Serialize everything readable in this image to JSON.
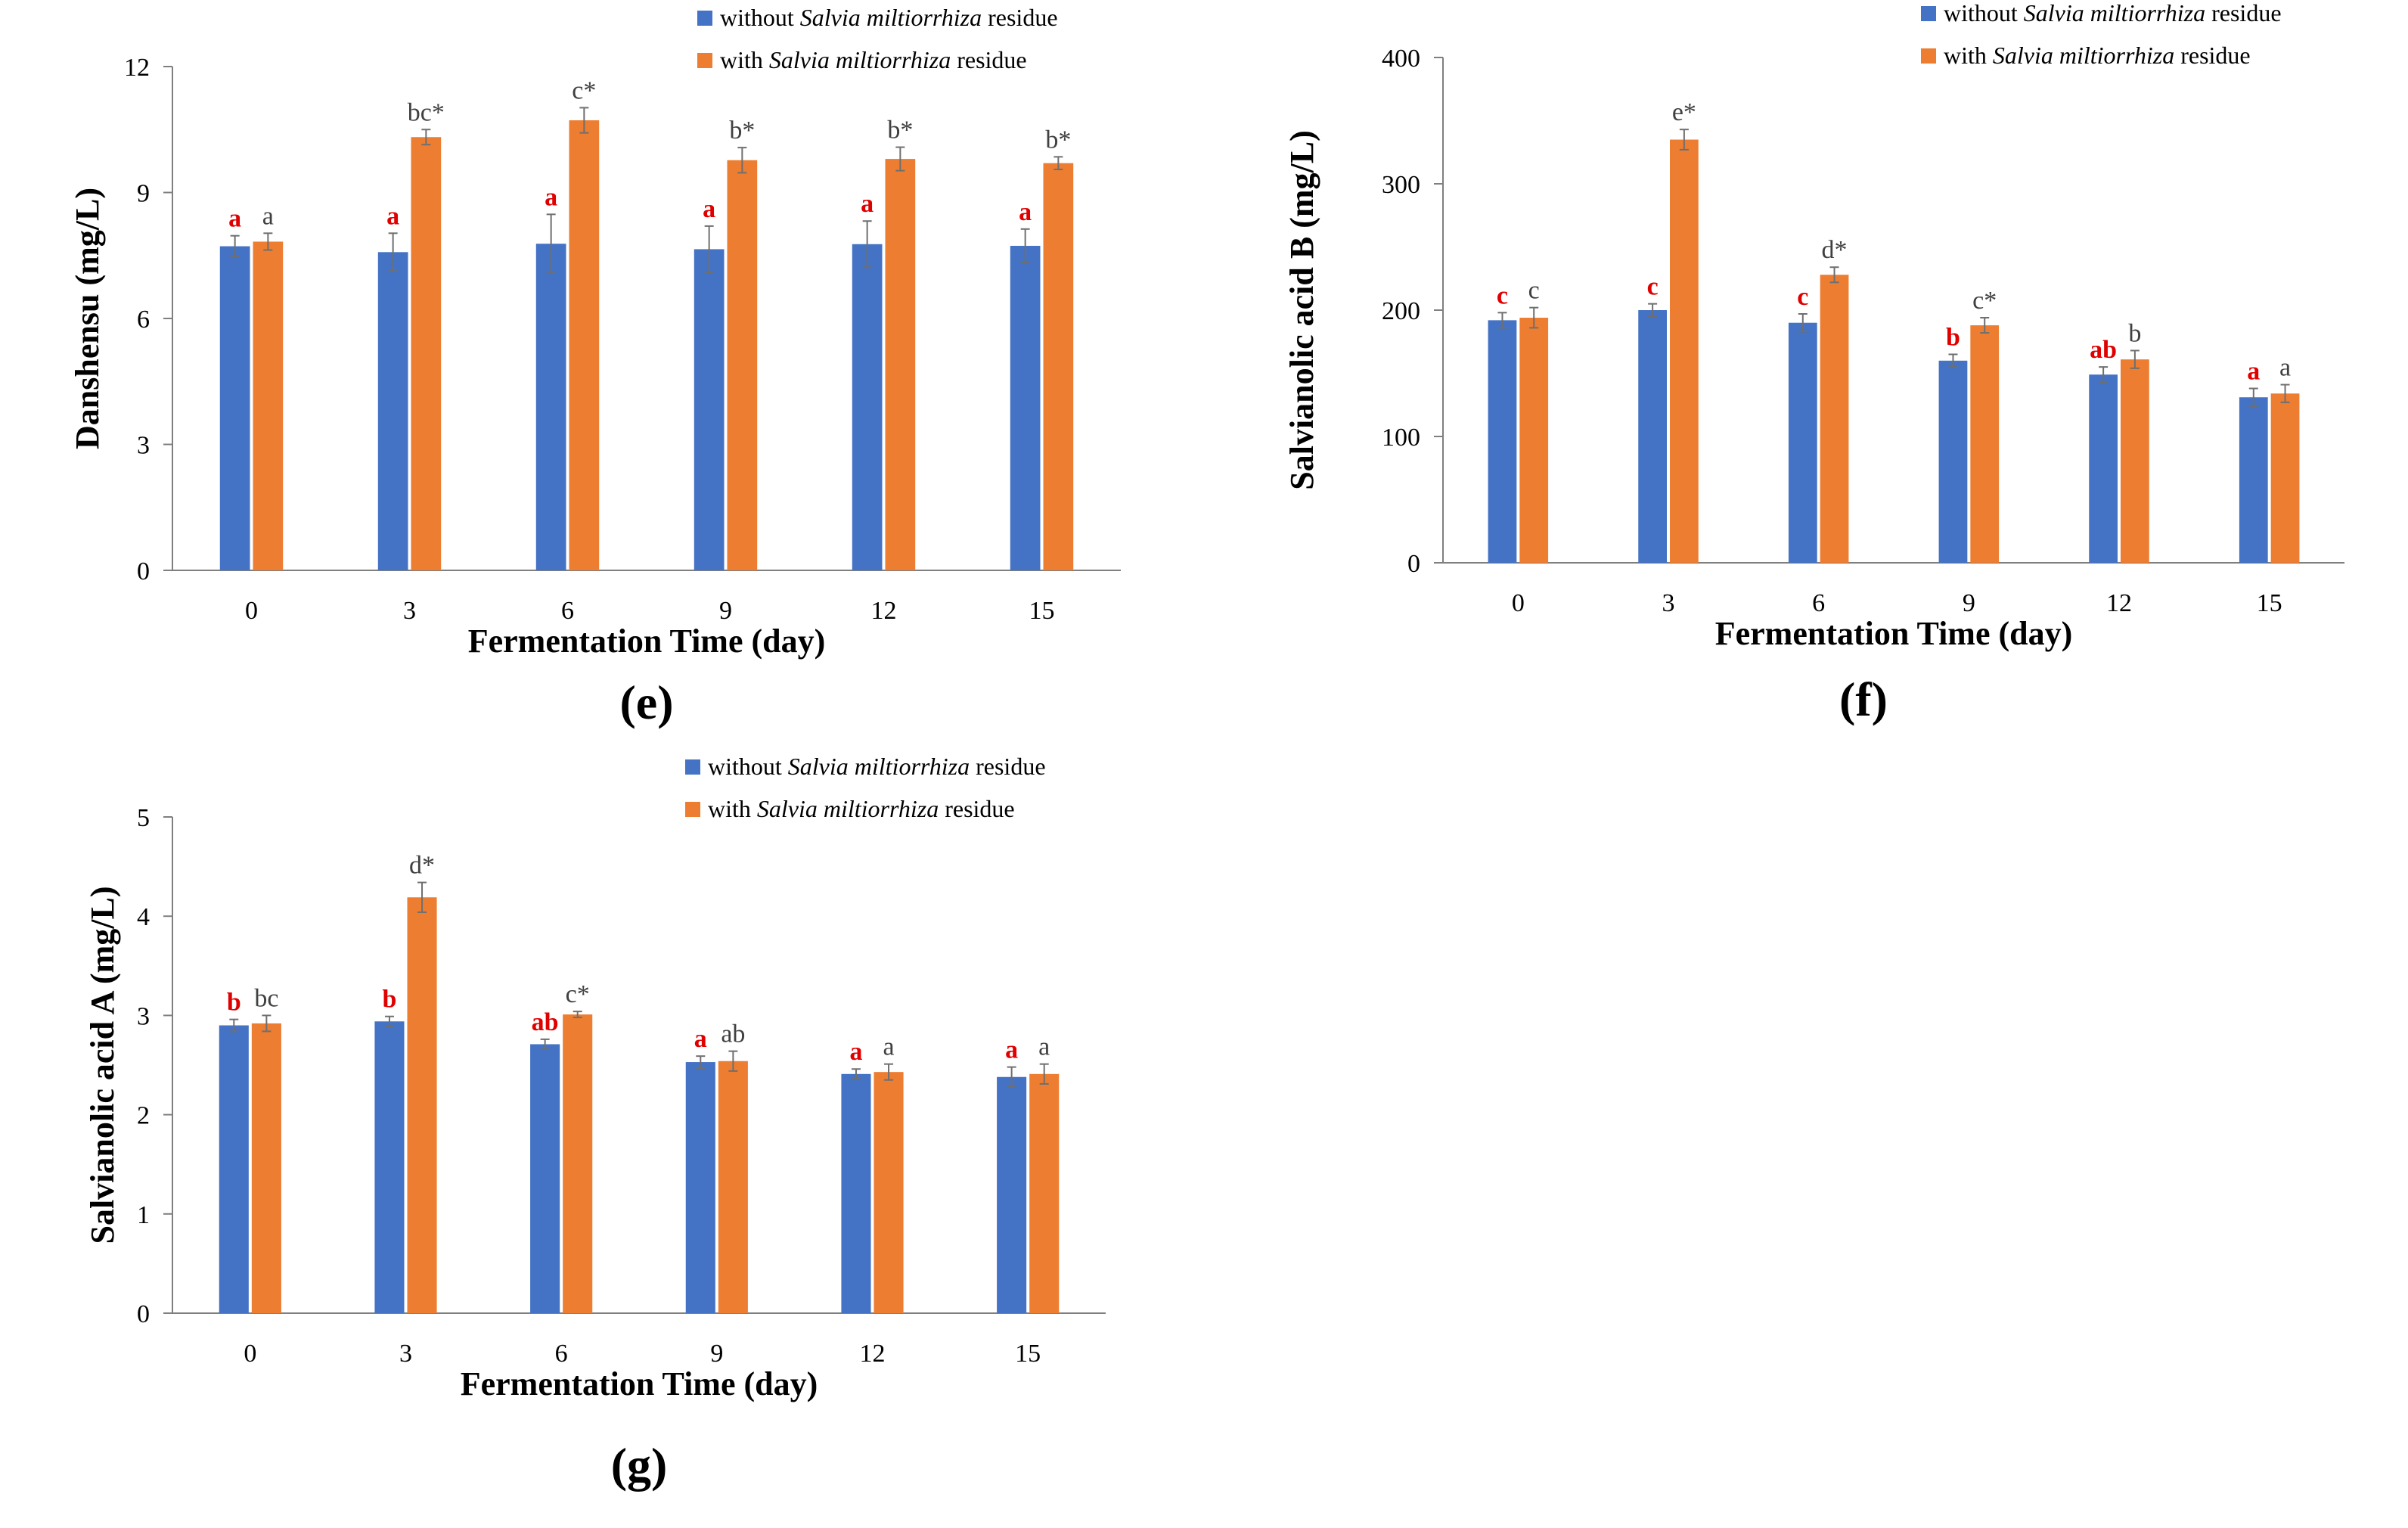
{
  "colors": {
    "without": "#4472C4",
    "with": "#ED7D31",
    "axis": "#7f7f7f",
    "error_bar": "#6f6f6f",
    "label_red": "#e00000",
    "label_dark": "#404040",
    "text": "#000000"
  },
  "chart_data": [
    {
      "id": "e",
      "type": "bar",
      "panel_label": "(e)",
      "xlabel": "Fermentation Time (day)",
      "ylabel": "Danshensu (mg/L)",
      "categories": [
        "0",
        "3",
        "6",
        "9",
        "12",
        "15"
      ],
      "ylim": [
        0,
        12
      ],
      "yticks": [
        0,
        3,
        6,
        9,
        12
      ],
      "grid": false,
      "legend_position": "top-right",
      "series": [
        {
          "name_prefix": "without ",
          "name_italic": "Salvia miltiorrhiza",
          "name_suffix": " residue",
          "color": "#4472C4",
          "values": [
            7.72,
            7.58,
            7.78,
            7.65,
            7.77,
            7.73
          ],
          "errors": [
            0.25,
            0.45,
            0.7,
            0.55,
            0.55,
            0.4
          ],
          "labels": [
            "a",
            "a",
            "a",
            "a",
            "a",
            "a"
          ]
        },
        {
          "name_prefix": "with ",
          "name_italic": "Salvia miltiorrhiza",
          "name_suffix": " residue",
          "color": "#ED7D31",
          "values": [
            7.83,
            10.32,
            10.72,
            9.77,
            9.8,
            9.7
          ],
          "errors": [
            0.2,
            0.18,
            0.3,
            0.3,
            0.28,
            0.15
          ],
          "labels": [
            "a",
            "bc*",
            "c*",
            "b*",
            "b*",
            "b*"
          ]
        }
      ]
    },
    {
      "id": "f",
      "type": "bar",
      "panel_label": "(f)",
      "xlabel": "Fermentation Time (day)",
      "ylabel": "Salvianolic acid B  (mg/L)",
      "categories": [
        "0",
        "3",
        "6",
        "9",
        "12",
        "15"
      ],
      "ylim": [
        0,
        400
      ],
      "yticks": [
        0,
        100,
        200,
        300,
        400
      ],
      "grid": false,
      "legend_position": "top-right",
      "series": [
        {
          "name_prefix": "without ",
          "name_italic": "Salvia miltiorrhiza",
          "name_suffix": " residue",
          "color": "#4472C4",
          "values": [
            192,
            200,
            190,
            160,
            149,
            131
          ],
          "errors": [
            6,
            5,
            7,
            5,
            6,
            7
          ],
          "labels": [
            "c",
            "c",
            "c",
            "b",
            "ab",
            "a"
          ]
        },
        {
          "name_prefix": "with ",
          "name_italic": "Salvia miltiorrhiza",
          "name_suffix": " residue",
          "color": "#ED7D31",
          "values": [
            194,
            335,
            228,
            188,
            161,
            134
          ],
          "errors": [
            8,
            8,
            6,
            6,
            7,
            7
          ],
          "labels": [
            "c",
            "e*",
            "d*",
            "c*",
            "b",
            "a"
          ]
        }
      ]
    },
    {
      "id": "g",
      "type": "bar",
      "panel_label": "(g)",
      "xlabel": "Fermentation Time (day)",
      "ylabel": "Salvianolic acid A (mg/L)",
      "categories": [
        "0",
        "3",
        "6",
        "9",
        "12",
        "15"
      ],
      "ylim": [
        0,
        5
      ],
      "yticks": [
        0,
        1,
        2,
        3,
        4,
        5
      ],
      "grid": false,
      "legend_position": "top-right",
      "series": [
        {
          "name_prefix": "without ",
          "name_italic": "Salvia miltiorrhiza",
          "name_suffix": " residue",
          "color": "#4472C4",
          "values": [
            2.9,
            2.94,
            2.71,
            2.53,
            2.41,
            2.38
          ],
          "errors": [
            0.06,
            0.05,
            0.05,
            0.06,
            0.05,
            0.1
          ],
          "labels": [
            "b",
            "b",
            "ab",
            "a",
            "a",
            "a"
          ]
        },
        {
          "name_prefix": "with ",
          "name_italic": "Salvia miltiorrhiza",
          "name_suffix": " residue",
          "color": "#ED7D31",
          "values": [
            2.92,
            4.19,
            3.01,
            2.54,
            2.43,
            2.41
          ],
          "errors": [
            0.08,
            0.15,
            0.03,
            0.1,
            0.08,
            0.1
          ],
          "labels": [
            "bc",
            "d*",
            "c*",
            "ab",
            "a",
            "a"
          ]
        }
      ]
    }
  ]
}
